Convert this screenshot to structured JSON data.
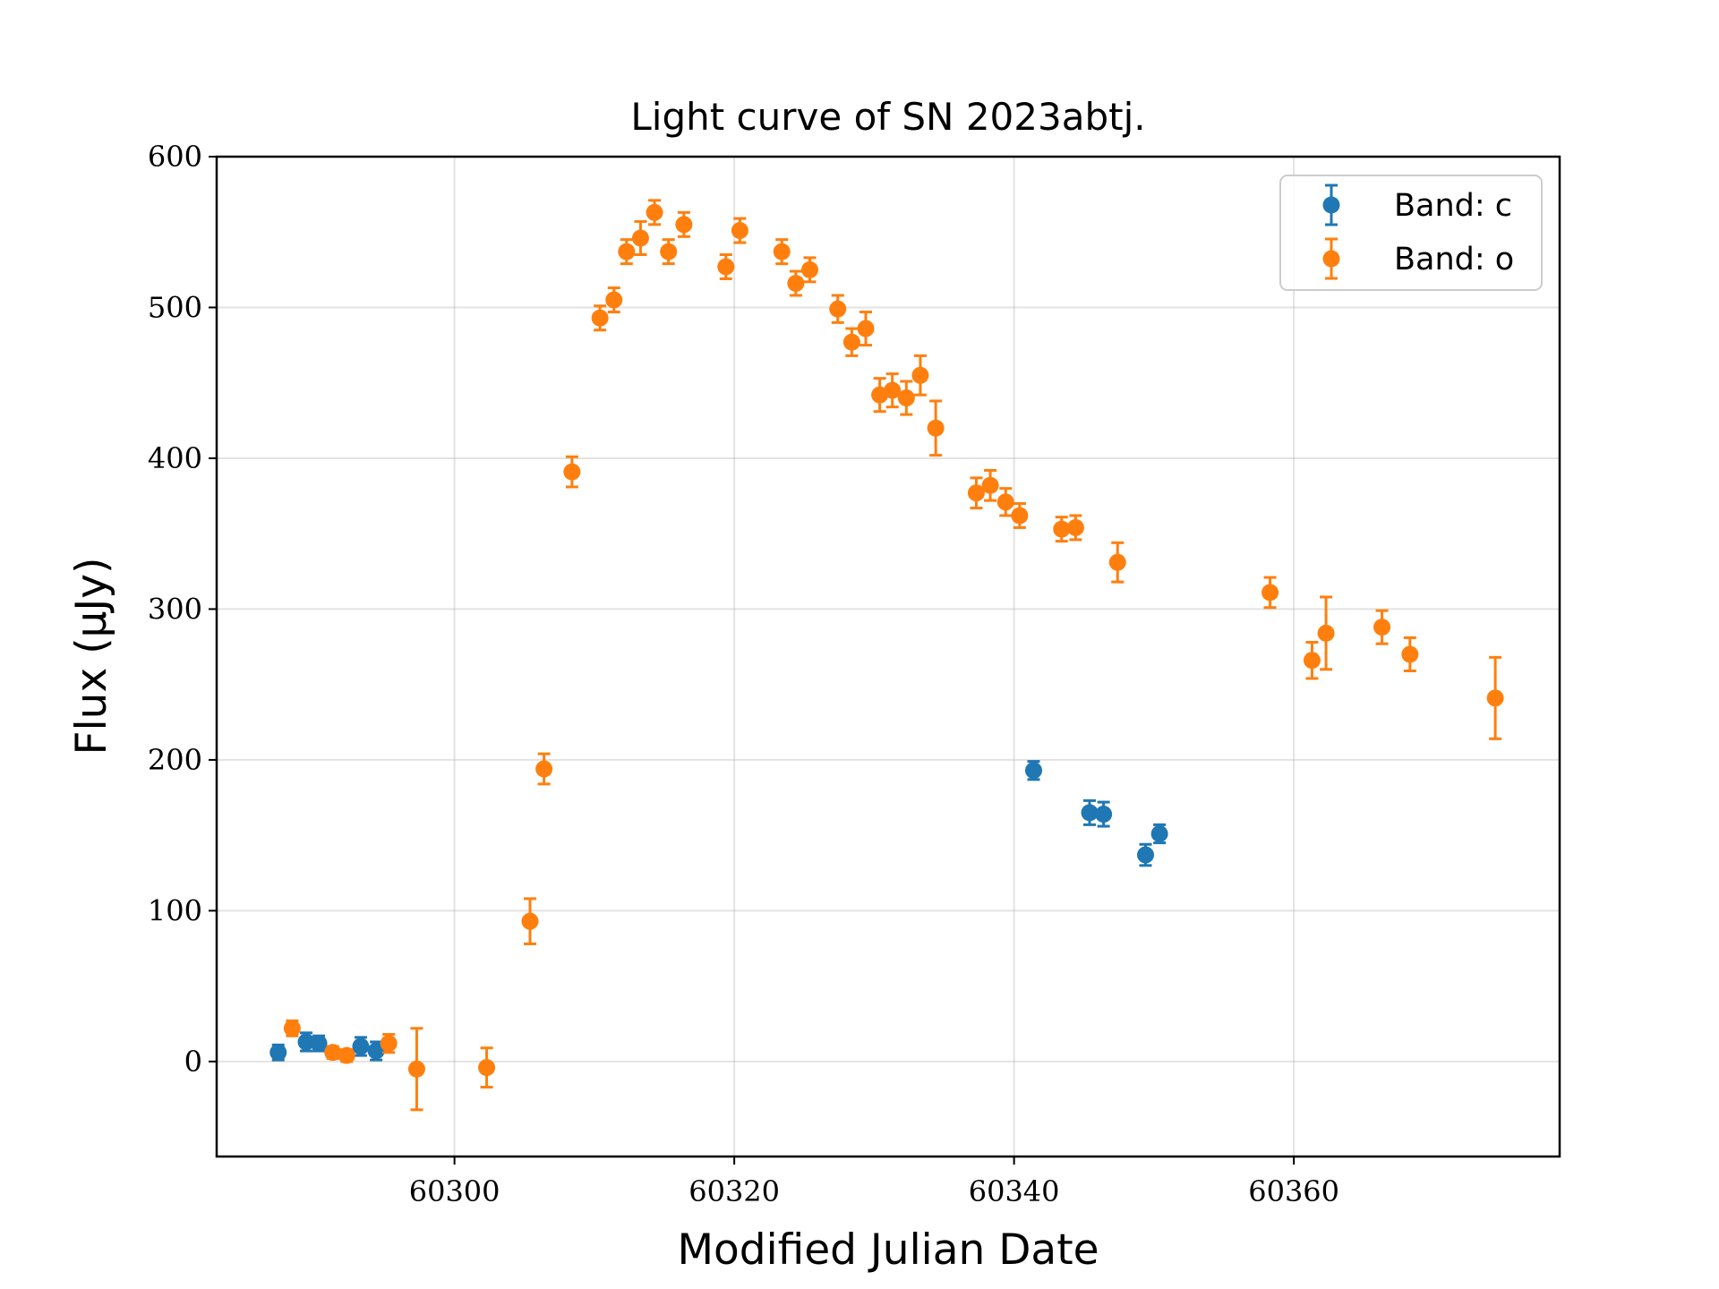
{
  "chart_data": {
    "type": "scatter",
    "title": "Light curve of SN 2023abtj.",
    "xlabel": "Modified Julian Date",
    "ylabel": "Flux (μJy)",
    "xlim": [
      60283,
      60379
    ],
    "ylim": [
      -63,
      600
    ],
    "xticks": [
      60300,
      60320,
      60340,
      60360
    ],
    "yticks": [
      0,
      100,
      200,
      300,
      400,
      500,
      600
    ],
    "grid": true,
    "legend": "top-right",
    "series": [
      {
        "name": "Band: c",
        "color": "#1f77b4",
        "points": [
          {
            "x": 60287.4,
            "y": 6,
            "err": 5
          },
          {
            "x": 60289.4,
            "y": 13,
            "err": 6
          },
          {
            "x": 60290.3,
            "y": 12,
            "err": 5
          },
          {
            "x": 60293.3,
            "y": 10,
            "err": 6
          },
          {
            "x": 60294.4,
            "y": 7,
            "err": 6
          },
          {
            "x": 60341.4,
            "y": 193,
            "err": 6
          },
          {
            "x": 60345.4,
            "y": 165,
            "err": 8
          },
          {
            "x": 60346.4,
            "y": 164,
            "err": 8
          },
          {
            "x": 60349.4,
            "y": 137,
            "err": 7
          },
          {
            "x": 60350.4,
            "y": 151,
            "err": 6
          }
        ]
      },
      {
        "name": "Band: o",
        "color": "#ff7f0e",
        "points": [
          {
            "x": 60288.4,
            "y": 22,
            "err": 5
          },
          {
            "x": 60291.3,
            "y": 6,
            "err": 4
          },
          {
            "x": 60292.3,
            "y": 4,
            "err": 4
          },
          {
            "x": 60295.3,
            "y": 12,
            "err": 6
          },
          {
            "x": 60297.3,
            "y": -5,
            "err": 27
          },
          {
            "x": 60302.3,
            "y": -4,
            "err": 13
          },
          {
            "x": 60305.4,
            "y": 93,
            "err": 15
          },
          {
            "x": 60306.4,
            "y": 194,
            "err": 10
          },
          {
            "x": 60308.4,
            "y": 391,
            "err": 10
          },
          {
            "x": 60310.4,
            "y": 493,
            "err": 8
          },
          {
            "x": 60311.4,
            "y": 505,
            "err": 8
          },
          {
            "x": 60312.3,
            "y": 537,
            "err": 8
          },
          {
            "x": 60313.3,
            "y": 546,
            "err": 11
          },
          {
            "x": 60314.3,
            "y": 563,
            "err": 8
          },
          {
            "x": 60315.3,
            "y": 537,
            "err": 8
          },
          {
            "x": 60316.4,
            "y": 555,
            "err": 8
          },
          {
            "x": 60319.4,
            "y": 527,
            "err": 8
          },
          {
            "x": 60320.4,
            "y": 551,
            "err": 8
          },
          {
            "x": 60323.4,
            "y": 537,
            "err": 8
          },
          {
            "x": 60324.4,
            "y": 516,
            "err": 8
          },
          {
            "x": 60325.4,
            "y": 525,
            "err": 8
          },
          {
            "x": 60327.4,
            "y": 499,
            "err": 9
          },
          {
            "x": 60328.4,
            "y": 477,
            "err": 9
          },
          {
            "x": 60329.4,
            "y": 486,
            "err": 11
          },
          {
            "x": 60330.4,
            "y": 442,
            "err": 11
          },
          {
            "x": 60331.3,
            "y": 445,
            "err": 11
          },
          {
            "x": 60332.3,
            "y": 440,
            "err": 11
          },
          {
            "x": 60333.3,
            "y": 455,
            "err": 13
          },
          {
            "x": 60334.4,
            "y": 420,
            "err": 18
          },
          {
            "x": 60337.3,
            "y": 377,
            "err": 10
          },
          {
            "x": 60338.3,
            "y": 382,
            "err": 10
          },
          {
            "x": 60339.4,
            "y": 371,
            "err": 9
          },
          {
            "x": 60340.4,
            "y": 362,
            "err": 8
          },
          {
            "x": 60343.4,
            "y": 353,
            "err": 8
          },
          {
            "x": 60344.4,
            "y": 354,
            "err": 8
          },
          {
            "x": 60347.4,
            "y": 331,
            "err": 13
          },
          {
            "x": 60358.3,
            "y": 311,
            "err": 10
          },
          {
            "x": 60361.3,
            "y": 266,
            "err": 12
          },
          {
            "x": 60362.3,
            "y": 284,
            "err": 24
          },
          {
            "x": 60366.3,
            "y": 288,
            "err": 11
          },
          {
            "x": 60368.3,
            "y": 270,
            "err": 11
          },
          {
            "x": 60374.4,
            "y": 241,
            "err": 27
          }
        ]
      }
    ]
  }
}
